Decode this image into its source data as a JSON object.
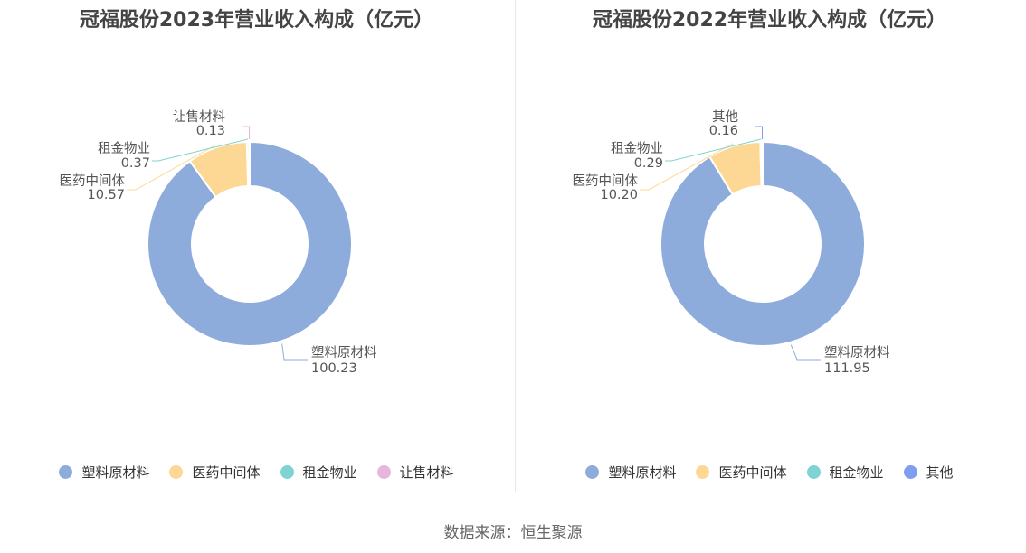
{
  "source_text": "数据来源：恒生聚源",
  "chart_data": [
    {
      "type": "pie",
      "title": "冠福股份2023年营业收入构成（亿元）",
      "labels": [
        "塑料原材料",
        "医药中间体",
        "租金物业",
        "让售材料"
      ],
      "values": [
        100.23,
        10.57,
        0.37,
        0.13
      ],
      "value_labels": [
        "100.23",
        "10.57",
        "0.37",
        "0.13"
      ],
      "colors": [
        "#8eacdb",
        "#fdd895",
        "#7fd3d3",
        "#e7b6da"
      ],
      "legend": "bottom"
    },
    {
      "type": "pie",
      "title": "冠福股份2022年营业收入构成（亿元）",
      "labels": [
        "塑料原材料",
        "医药中间体",
        "租金物业",
        "其他"
      ],
      "values": [
        111.95,
        10.2,
        0.29,
        0.16
      ],
      "value_labels": [
        "111.95",
        "10.20",
        "0.29",
        "0.16"
      ],
      "colors": [
        "#8eacdb",
        "#fdd895",
        "#7fd3d3",
        "#7f9ef0"
      ],
      "legend": "bottom"
    }
  ]
}
